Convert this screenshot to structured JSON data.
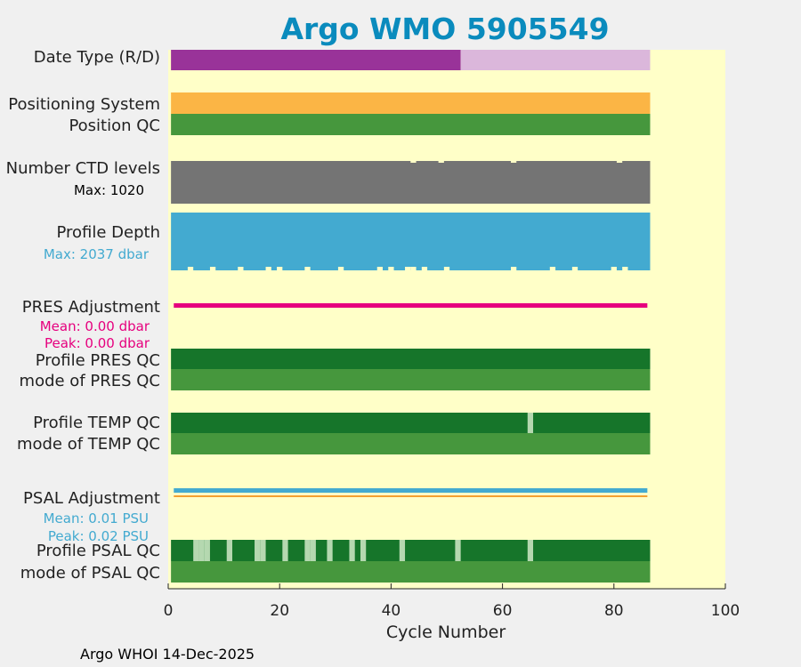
{
  "chart_data": {
    "type": "bar",
    "title": "Argo WMO 5905549",
    "xlabel": "Cycle Number",
    "xlim": [
      0,
      100
    ],
    "xticks": [
      "0",
      "20",
      "40",
      "60",
      "80",
      "100"
    ],
    "last_cycle": 86,
    "footer": "Argo WHOI 14-Dec-2025",
    "colors": {
      "background": "#ffffc8",
      "title": "#0a8bbd",
      "realtime": "#993399",
      "delayed": "#dbb7db",
      "positioning": "#fbb545",
      "qc_good": "#46973d",
      "qc_profile": "#16752a",
      "qc_partial": "#b5d8b0",
      "ctd": "#747474",
      "depth": "#43aad0",
      "pres_adj": "#e6007e",
      "psal_adj": "#43aad0",
      "psal_line": "#f3a030"
    },
    "rows": {
      "date_type": {
        "label": "Date Type (R/D)",
        "realtime_cycles": [
          1,
          52
        ],
        "delayed_cycles": [
          53,
          86
        ]
      },
      "positioning": {
        "label": "Positioning System"
      },
      "position_qc": {
        "label": "Position QC"
      },
      "ctd_levels": {
        "label": "Number CTD levels",
        "note": "Max: 1020"
      },
      "profile_depth": {
        "label": "Profile Depth",
        "note": "Max: 2037 dbar"
      },
      "pres_adjustment": {
        "label": "PRES Adjustment",
        "mean": "Mean: 0.00 dbar",
        "peak": "Peak: 0.00 dbar"
      },
      "profile_pres_qc": {
        "label": "Profile PRES QC"
      },
      "mode_pres_qc": {
        "label": "mode of PRES QC"
      },
      "profile_temp_qc": {
        "label": "Profile TEMP QC",
        "partial_cycles": [
          65
        ]
      },
      "mode_temp_qc": {
        "label": "mode of TEMP QC"
      },
      "psal_adjustment": {
        "label": "PSAL Adjustment",
        "mean": "Mean: 0.01 PSU",
        "peak": "Peak: 0.02 PSU"
      },
      "profile_psal_qc": {
        "label": "Profile PSAL QC",
        "partial_cycles": [
          5,
          6,
          7,
          11,
          16,
          17,
          21,
          25,
          26,
          29,
          33,
          35,
          42,
          52,
          65
        ]
      },
      "mode_psal_qc": {
        "label": "mode of PSAL QC"
      }
    },
    "ctd_dips": [
      44,
      49,
      62,
      81
    ],
    "depth_gaps": [
      4,
      8,
      13,
      18,
      20,
      25,
      31,
      38,
      40,
      43,
      44,
      46,
      50,
      62,
      69,
      73,
      80,
      82
    ]
  }
}
